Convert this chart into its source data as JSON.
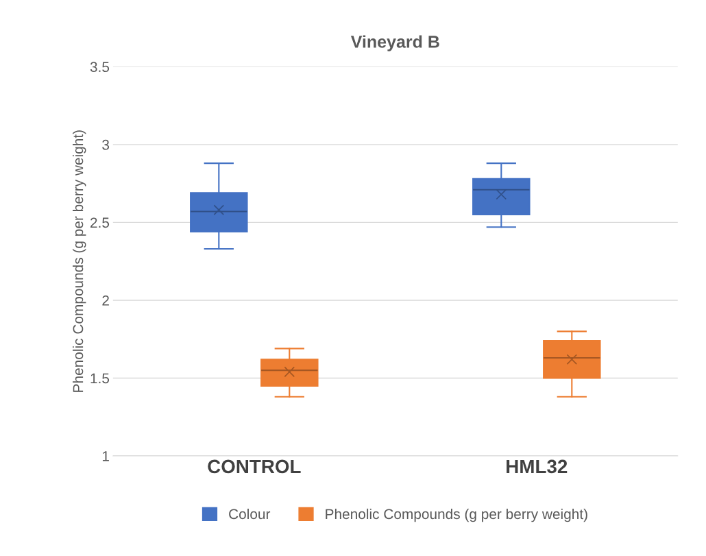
{
  "chart_data": {
    "type": "box",
    "title": "Vineyard B",
    "ylabel": "Phenolic Compounds (g per berry weight)",
    "categories": [
      "CONTROL",
      "HML32"
    ],
    "series": [
      {
        "name": "Colour",
        "color": "#4472c4",
        "boxes": [
          {
            "low": 2.33,
            "q1": 2.44,
            "median": 2.57,
            "q3": 2.69,
            "high": 2.88,
            "mean": 2.58
          },
          {
            "low": 2.47,
            "q1": 2.55,
            "median": 2.71,
            "q3": 2.78,
            "high": 2.88,
            "mean": 2.68
          }
        ]
      },
      {
        "name": "Phenolic Compounds (g per berry weight)",
        "color": "#ed7d31",
        "boxes": [
          {
            "low": 1.38,
            "q1": 1.45,
            "median": 1.55,
            "q3": 1.62,
            "high": 1.69,
            "mean": 1.54
          },
          {
            "low": 1.38,
            "q1": 1.5,
            "median": 1.63,
            "q3": 1.74,
            "high": 1.8,
            "mean": 1.62
          }
        ]
      }
    ],
    "ylim": [
      1,
      3.5
    ],
    "yticks": [
      1,
      1.5,
      2,
      2.5,
      3,
      3.5
    ],
    "grid": "y",
    "legend": "bottom"
  }
}
